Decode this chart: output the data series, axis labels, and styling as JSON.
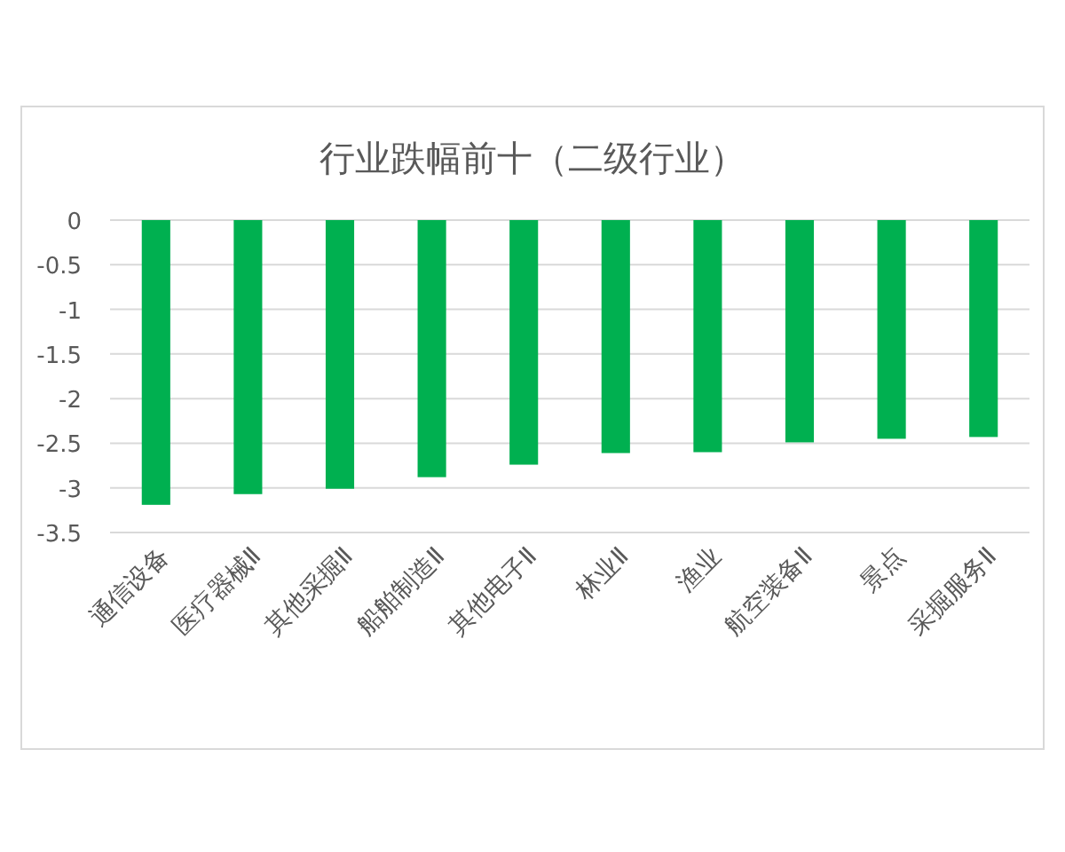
{
  "chart_data": {
    "type": "bar",
    "title": "行业跌幅前十（二级行业）",
    "categories": [
      "通信设备",
      "医疗器械Ⅱ",
      "其他采掘Ⅱ",
      "船舶制造Ⅱ",
      "其他电子Ⅱ",
      "林业Ⅱ",
      "渔业",
      "航空装备Ⅱ",
      "景点",
      "采掘服务Ⅱ"
    ],
    "values": [
      -3.19,
      -3.07,
      -3.01,
      -2.88,
      -2.74,
      -2.61,
      -2.6,
      -2.49,
      -2.45,
      -2.43
    ],
    "color": "#00b050",
    "ylim": [
      -3.5,
      0
    ],
    "yticks": [
      -3.5,
      -3,
      -2.5,
      -2,
      -1.5,
      -1,
      -0.5,
      0
    ],
    "grid": "y"
  }
}
